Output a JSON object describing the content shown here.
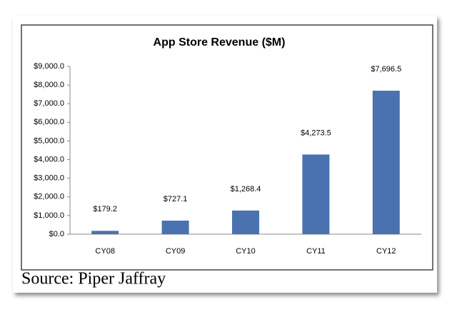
{
  "chart_data": {
    "type": "bar",
    "title": "App Store Revenue ($M)",
    "categories": [
      "CY08",
      "CY09",
      "CY10",
      "CY11",
      "CY12"
    ],
    "values": [
      179.2,
      727.1,
      1268.4,
      4273.5,
      7696.5
    ],
    "value_labels": [
      "$179.2",
      "$727.1",
      "$1,268.4",
      "$4,273.5",
      "$7,696.5"
    ],
    "color": "#4a72b0",
    "ylim": [
      0,
      9000
    ],
    "yticks": [
      {
        "value": 0,
        "label": "$0.0"
      },
      {
        "value": 1000,
        "label": "$1,000.0"
      },
      {
        "value": 2000,
        "label": "$2,000.0"
      },
      {
        "value": 3000,
        "label": "$3,000.0"
      },
      {
        "value": 4000,
        "label": "$4,000.0"
      },
      {
        "value": 5000,
        "label": "$5,000.0"
      },
      {
        "value": 6000,
        "label": "$6,000.0"
      },
      {
        "value": 7000,
        "label": "$7,000.0"
      },
      {
        "value": 8000,
        "label": "$8,000.0"
      },
      {
        "value": 9000,
        "label": "$9,000.0"
      }
    ],
    "grid": false,
    "source": "Source: Piper Jaffray"
  }
}
